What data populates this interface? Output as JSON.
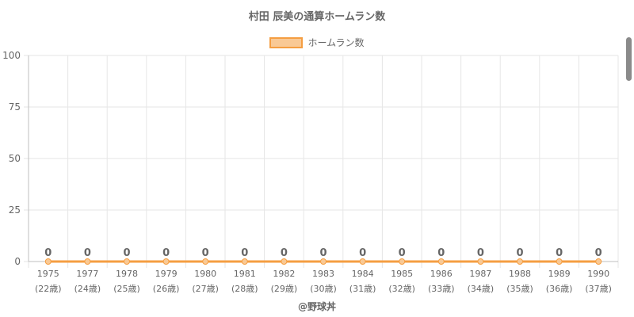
{
  "title": "村田 辰美の通算ホームラン数",
  "footer": "@野球丼",
  "colors": {
    "line": "#f59e42",
    "fill": "#f9c995",
    "grid": "#e6e6e6",
    "text": "#666666"
  },
  "chart_data": {
    "type": "line",
    "title": "村田 辰美の通算ホームラン数",
    "categories": [
      "1975",
      "1977",
      "1978",
      "1979",
      "1980",
      "1981",
      "1982",
      "1983",
      "1984",
      "1985",
      "1986",
      "1987",
      "1988",
      "1989",
      "1990"
    ],
    "category_sublabels": [
      "(22歳)",
      "(24歳)",
      "(25歳)",
      "(26歳)",
      "(27歳)",
      "(28歳)",
      "(29歳)",
      "(30歳)",
      "(31歳)",
      "(32歳)",
      "(33歳)",
      "(34歳)",
      "(35歳)",
      "(36歳)",
      "(37歳)"
    ],
    "series": [
      {
        "name": "ホームラン数",
        "values": [
          0,
          0,
          0,
          0,
          0,
          0,
          0,
          0,
          0,
          0,
          0,
          0,
          0,
          0,
          0
        ]
      }
    ],
    "ylim": [
      0,
      100
    ],
    "yticks": [
      0,
      25,
      50,
      75,
      100
    ],
    "grid": true,
    "legend_position": "top",
    "data_labels": true
  }
}
